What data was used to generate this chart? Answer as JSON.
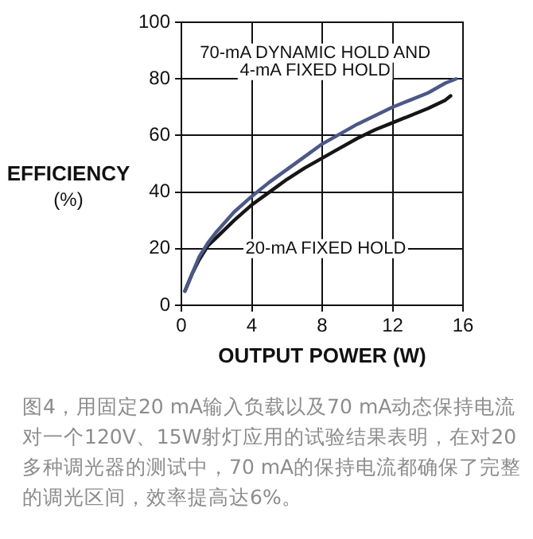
{
  "chart_data": {
    "type": "line",
    "xlabel": "OUTPUT POWER (W)",
    "ylabel": "EFFICIENCY (%)",
    "xlim": [
      0,
      16
    ],
    "xticks": [
      0,
      4,
      8,
      12,
      16
    ],
    "ylim": [
      0,
      100
    ],
    "yticks": [
      0,
      20,
      40,
      60,
      80,
      100
    ],
    "grid": true,
    "legend": false,
    "marker": "none",
    "line_style": "solid",
    "series": [
      {
        "name": "70-mA DYNAMIC HOLD AND 4-mA FIXED HOLD",
        "color": "#4b5888",
        "x": [
          0.2,
          0.6,
          1,
          1.5,
          2,
          3,
          4,
          5,
          6,
          7,
          8,
          9,
          10,
          11,
          12,
          13,
          14,
          15,
          15.6
        ],
        "values": [
          5,
          11,
          17,
          22,
          26,
          33,
          38.5,
          43.5,
          48,
          52.5,
          57,
          60.5,
          64,
          67,
          70,
          72.5,
          75,
          78.5,
          80
        ]
      },
      {
        "name": "20-mA FIXED HOLD",
        "color": "#161616",
        "x": [
          0.2,
          0.6,
          1,
          1.5,
          2,
          3,
          4,
          5,
          6,
          7,
          8,
          9,
          10,
          11,
          12,
          13,
          14,
          15,
          15.3
        ],
        "values": [
          5,
          11,
          16,
          21,
          24,
          30,
          35.5,
          40,
          44.5,
          48.5,
          52,
          55.5,
          59,
          62,
          64.5,
          67,
          69.5,
          72.5,
          74
        ]
      }
    ],
    "annotations": [
      "图4，用固定20 mA输入负载以及70 mA动态保持电流对一个120V、15W射灯应用的试验结果表明，在对20多种调光器的测试中，70 mA的保持电流都确保了完整的调光区间，效率提高达6%。"
    ]
  }
}
